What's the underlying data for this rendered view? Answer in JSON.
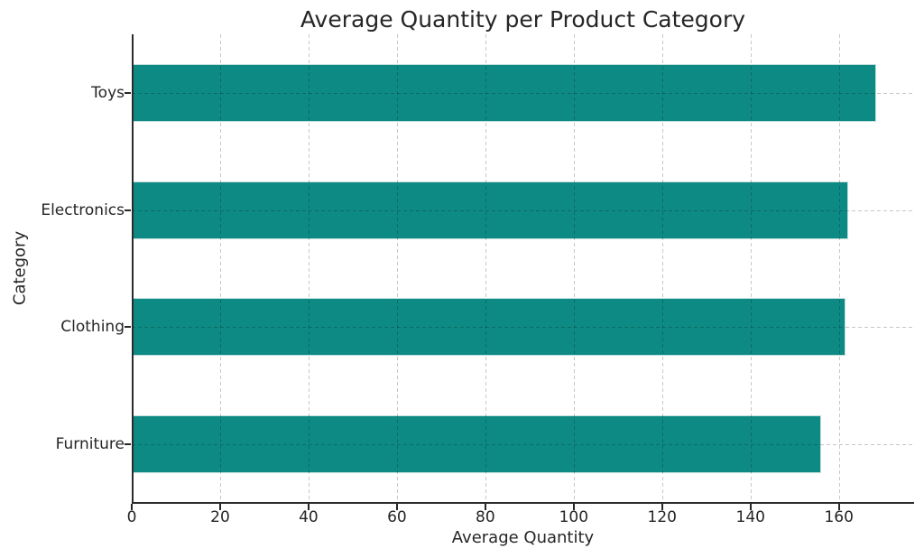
{
  "chart_data": {
    "type": "bar",
    "orientation": "horizontal",
    "title": "Average Quantity per Product Category",
    "xlabel": "Average Quantity",
    "ylabel": "Category",
    "categories": [
      "Toys",
      "Electronics",
      "Clothing",
      "Furniture"
    ],
    "values": [
      168.4,
      162.0,
      161.4,
      155.9
    ],
    "xlim": [
      0,
      177
    ],
    "xticks": [
      0,
      20,
      40,
      60,
      80,
      100,
      120,
      140,
      160
    ],
    "grid": {
      "visible": true,
      "style": "dashed",
      "axes": "both",
      "color": "#c8c8c8",
      "on_top_of_bars": true
    },
    "legend": "none",
    "bar_color": "#0e8a84",
    "spine_color": "#2b2b2b",
    "text_color": "#262626",
    "hidden_spines": [
      "top",
      "right"
    ]
  }
}
